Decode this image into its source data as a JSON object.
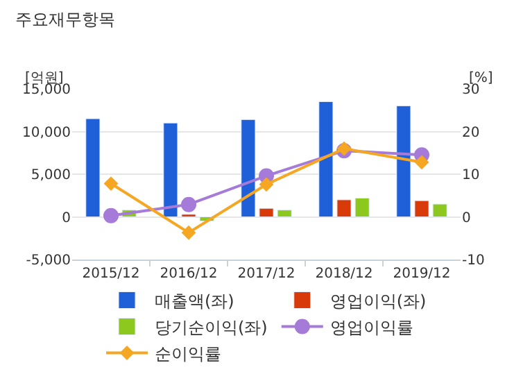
{
  "chart_data": {
    "type": "bar",
    "title": "주요재무항목",
    "ylabel": "[억원]",
    "y2label": "[%]",
    "categories": [
      "2015/12",
      "2016/12",
      "2017/12",
      "2018/12",
      "2019/12"
    ],
    "series": [
      {
        "name": "매출액(좌)",
        "color": "#1f5fd8",
        "values": [
          11500,
          11000,
          11400,
          13500,
          13000
        ]
      },
      {
        "name": "영업이익(좌)",
        "color": "#d83a0a",
        "values": [
          null,
          300,
          1000,
          2000,
          1900
        ]
      },
      {
        "name": "당기순이익(좌)",
        "color": "#8cc81e",
        "values": [
          800,
          -500,
          800,
          2200,
          1500
        ]
      },
      {
        "name": "영업이익률",
        "type": "line",
        "axis": "y2",
        "marker": "circle",
        "color": "#a57ad8",
        "values": [
          0.3,
          2.9,
          9.6,
          15.5,
          14.5
        ]
      },
      {
        "name": "순이익률",
        "type": "line",
        "axis": "y2",
        "marker": "diamond",
        "color": "#f5a623",
        "values": [
          7.8,
          -3.7,
          7.6,
          16.0,
          12.8
        ]
      }
    ],
    "ylim": [
      -5000,
      15000
    ],
    "yticks": [
      {
        "value": -5000,
        "label": "-5,000"
      },
      {
        "value": 0,
        "label": "0"
      },
      {
        "value": 5000,
        "label": "5,000"
      },
      {
        "value": 10000,
        "label": "10,000"
      },
      {
        "value": 15000,
        "label": "15,000"
      }
    ],
    "y2lim": [
      -10,
      30
    ],
    "y2ticks": [
      -10,
      0,
      10,
      20,
      30
    ],
    "grid": "y",
    "legend": "bottom"
  }
}
